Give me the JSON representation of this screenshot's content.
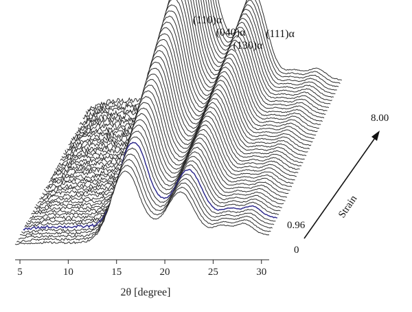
{
  "chart_data": {
    "type": "line",
    "title": "",
    "xlabel": "2θ [degree]",
    "ylabel": "",
    "xlim": [
      4.5,
      30.8
    ],
    "x_ticks": [
      "5",
      "10",
      "15",
      "20",
      "25",
      "30"
    ],
    "x_tick_values": [
      5,
      10,
      15,
      20,
      25,
      30
    ],
    "depth_axis": {
      "label": "Strain",
      "start_label": "0",
      "end_label": "8.00",
      "highlight_label": "0.96",
      "range": [
        0,
        8.0
      ],
      "highlight_value": 0.96
    },
    "series_count": 46,
    "highlight_series_index": 5,
    "highlight_color": "#2e2a8c",
    "line_color": "#2a2a2a",
    "peaks": [
      {
        "label": "(110)α",
        "two_theta": 16.0
      },
      {
        "label": "(040)α",
        "two_theta": 16.8
      },
      {
        "label": "(130)α",
        "two_theta": 18.6
      },
      {
        "label": "(111)α",
        "two_theta": 21.3
      }
    ],
    "profile_components": [
      {
        "center": 16.0,
        "width": 1.3,
        "amp_start": 0.52,
        "amp_end": 1.18
      },
      {
        "center": 16.9,
        "width": 0.9,
        "amp_start": 0.04,
        "amp_end": 0.32
      },
      {
        "center": 18.6,
        "width": 0.8,
        "amp_start": 0.04,
        "amp_end": 0.22
      },
      {
        "center": 21.6,
        "width": 1.4,
        "amp_start": 0.38,
        "amp_end": 0.78
      },
      {
        "center": 25.9,
        "width": 0.9,
        "amp_start": 0.08,
        "amp_end": 0.08
      },
      {
        "center": 28.2,
        "width": 0.9,
        "amp_start": 0.1,
        "amp_end": 0.1
      }
    ],
    "low_angle_level": {
      "start": 0.15,
      "end": 0.8
    },
    "grid": false,
    "legend": "none"
  }
}
